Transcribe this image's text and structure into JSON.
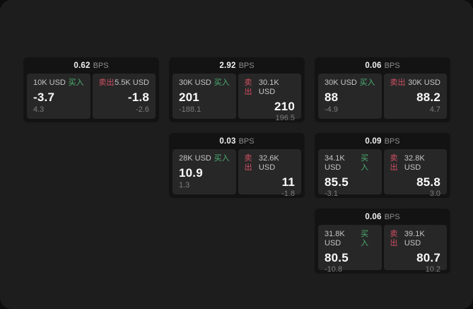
{
  "labels": {
    "buy": "买入",
    "sell": "卖出",
    "bps_unit": "BPS"
  },
  "colors": {
    "background": "#0d0d0d",
    "board": "#1d1d1d",
    "card": "#131313",
    "panel": "#272727",
    "buy_green": "#4caf72",
    "sell_red": "#cf5063",
    "value_white": "#fafafa",
    "label_gray": "#c6c6c6",
    "muted_gray": "#7e7e7e"
  },
  "cards": [
    {
      "bps": "0.62",
      "buy": {
        "amount": "10K USD",
        "price": "-3.7",
        "delta": "4.3"
      },
      "sell": {
        "amount": "5.5K USD",
        "price": "-1.8",
        "delta": "-2.6"
      }
    },
    {
      "bps": "2.92",
      "buy": {
        "amount": "30K USD",
        "price": "201",
        "delta": "-188.1"
      },
      "sell": {
        "amount": "30.1K USD",
        "price": "210",
        "delta": "196.5"
      }
    },
    {
      "bps": "0.06",
      "buy": {
        "amount": "30K USD",
        "price": "88",
        "delta": "-4.9"
      },
      "sell": {
        "amount": "30K USD",
        "price": "88.2",
        "delta": "4.7"
      }
    },
    {
      "bps": "0.03",
      "buy": {
        "amount": "28K USD",
        "price": "10.9",
        "delta": "1.3"
      },
      "sell": {
        "amount": "32.6K USD",
        "price": "11",
        "delta": "-1.8"
      }
    },
    {
      "bps": "0.09",
      "buy": {
        "amount": "34.1K USD",
        "price": "85.5",
        "delta": "-3.1"
      },
      "sell": {
        "amount": "32.8K USD",
        "price": "85.8",
        "delta": "3.0"
      }
    },
    {
      "bps": "0.06",
      "buy": {
        "amount": "31.8K USD",
        "price": "80.5",
        "delta": "-10.8"
      },
      "sell": {
        "amount": "39.1K USD",
        "price": "80.7",
        "delta": "10.2"
      }
    }
  ]
}
